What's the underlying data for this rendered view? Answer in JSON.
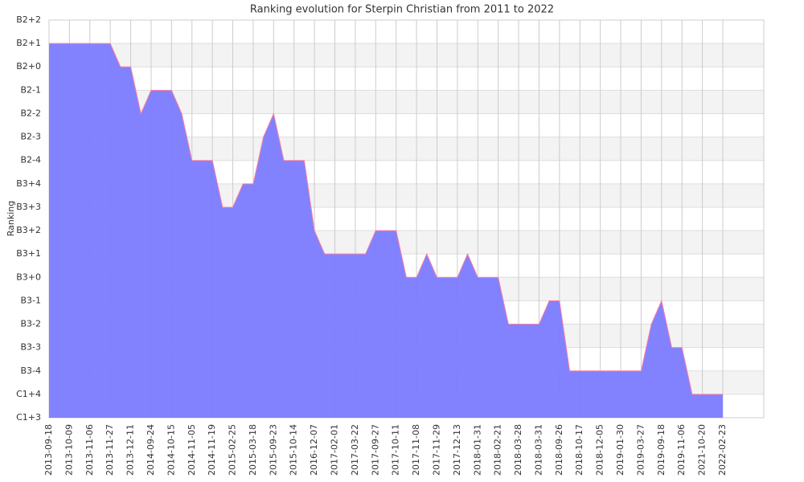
{
  "chart_data": {
    "type": "area",
    "title": "Ranking evolution for Sterpin Christian from 2011 to 2022",
    "y_label": "Ranking",
    "categories": [
      "2013-09-18",
      null,
      "2013-10-09",
      null,
      "2013-11-06",
      null,
      "2013-11-27",
      null,
      "2013-12-11",
      null,
      "2014-09-24",
      null,
      "2014-10-15",
      null,
      "2014-11-05",
      null,
      "2014-11-19",
      null,
      "2015-02-25",
      null,
      "2015-03-18",
      null,
      "2015-09-23",
      null,
      "2015-10-14",
      null,
      "2016-12-07",
      null,
      "2017-02-01",
      null,
      "2017-03-22",
      null,
      "2017-09-27",
      null,
      "2017-10-11",
      null,
      "2017-11-08",
      null,
      "2017-11-29",
      null,
      "2017-12-13",
      null,
      "2018-01-31",
      null,
      "2018-02-21",
      null,
      "2018-03-28",
      null,
      "2018-03-31",
      null,
      "2018-09-26",
      null,
      "2018-10-17",
      null,
      "2018-12-05",
      null,
      "2019-01-30",
      null,
      "2019-03-27",
      null,
      "2019-09-18",
      null,
      "2019-11-06",
      null,
      "2021-10-20",
      null,
      "2022-02-23"
    ],
    "series": [
      {
        "color": "#7b7bff",
        "edge_color": "#ff7f9f",
        "values": [
          16,
          16,
          16,
          16,
          16,
          16,
          16,
          15,
          15,
          13,
          14,
          14,
          14,
          13,
          11,
          11,
          11,
          9,
          9,
          10,
          10,
          12,
          13,
          11,
          11,
          11,
          8,
          7,
          7,
          7,
          7,
          7,
          8,
          8,
          8,
          6,
          6,
          7,
          6,
          6,
          6,
          7,
          6,
          6,
          6,
          4,
          4,
          4,
          4,
          5,
          5,
          2,
          2,
          2,
          2,
          2,
          2,
          2,
          2,
          4,
          5,
          3,
          3,
          1,
          1,
          1,
          1
        ]
      }
    ],
    "ylim": [
      0,
      17
    ],
    "yticks": [
      {
        "value": 0,
        "label": "C1+3"
      },
      {
        "value": 1,
        "label": "C1+4"
      },
      {
        "value": 2,
        "label": "B3-4"
      },
      {
        "value": 3,
        "label": "B3-3"
      },
      {
        "value": 4,
        "label": "B3-2"
      },
      {
        "value": 5,
        "label": "B3-1"
      },
      {
        "value": 6,
        "label": "B3+0"
      },
      {
        "value": 7,
        "label": "B3+1"
      },
      {
        "value": 8,
        "label": "B3+2"
      },
      {
        "value": 9,
        "label": "B3+3"
      },
      {
        "value": 10,
        "label": "B3+4"
      },
      {
        "value": 11,
        "label": "B2-4"
      },
      {
        "value": 12,
        "label": "B2-3"
      },
      {
        "value": 13,
        "label": "B2-2"
      },
      {
        "value": 14,
        "label": "B2-1"
      },
      {
        "value": 15,
        "label": "B2+0"
      },
      {
        "value": 16,
        "label": "B2+1"
      },
      {
        "value": 17,
        "label": "B2+2"
      }
    ],
    "grid": true
  }
}
